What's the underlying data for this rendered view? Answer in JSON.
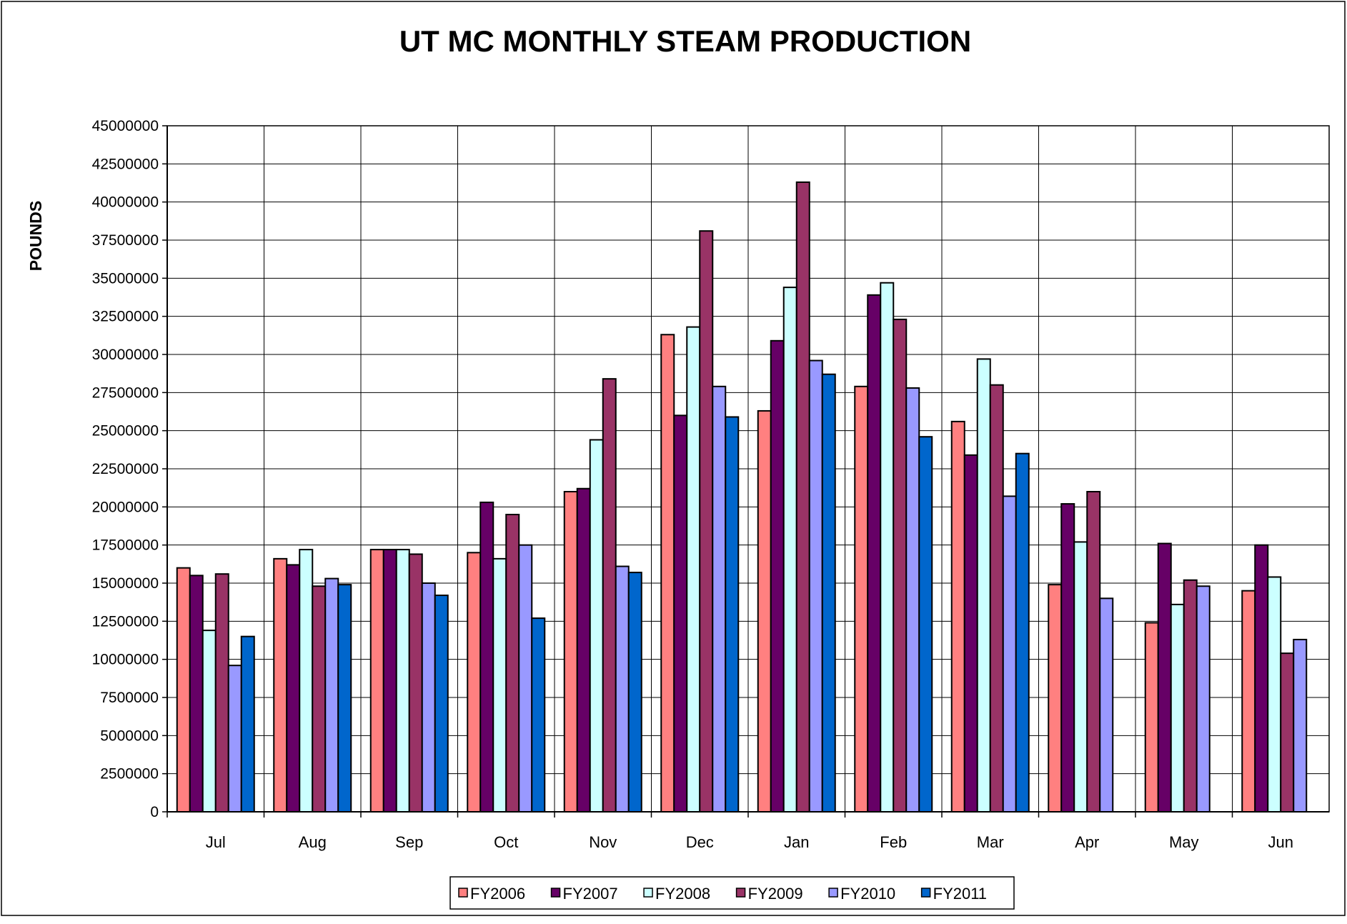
{
  "chart_data": {
    "type": "bar",
    "title": "UT MC MONTHLY STEAM PRODUCTION",
    "xlabel": "",
    "ylabel": "POUNDS",
    "ylim": [
      0,
      45000000
    ],
    "ytick_step": 2500000,
    "grid": true,
    "legend_position": "bottom",
    "categories": [
      "Jul",
      "Aug",
      "Sep",
      "Oct",
      "Nov",
      "Dec",
      "Jan",
      "Feb",
      "Mar",
      "Apr",
      "May",
      "Jun"
    ],
    "series": [
      {
        "name": "FY2006",
        "color": "#FF8080",
        "values": [
          16000000,
          16600000,
          17200000,
          17000000,
          21000000,
          31300000,
          26300000,
          27900000,
          25600000,
          14900000,
          12400000,
          14500000
        ]
      },
      {
        "name": "FY2007",
        "color": "#660066",
        "values": [
          15500000,
          16200000,
          17200000,
          20300000,
          21200000,
          26000000,
          30900000,
          33900000,
          23400000,
          20200000,
          17600000,
          17500000
        ]
      },
      {
        "name": "FY2008",
        "color": "#CCFFFF",
        "values": [
          11900000,
          17200000,
          17200000,
          16600000,
          24400000,
          31800000,
          34400000,
          34700000,
          29700000,
          17700000,
          13600000,
          15400000
        ]
      },
      {
        "name": "FY2009",
        "color": "#993366",
        "values": [
          15600000,
          14800000,
          16900000,
          19500000,
          28400000,
          38100000,
          41300000,
          32300000,
          28000000,
          21000000,
          15200000,
          10400000
        ]
      },
      {
        "name": "FY2010",
        "color": "#9999FF",
        "values": [
          9600000,
          15300000,
          15000000,
          17500000,
          16100000,
          27900000,
          29600000,
          27800000,
          20700000,
          14000000,
          14800000,
          11300000
        ]
      },
      {
        "name": "FY2011",
        "color": "#0066CC",
        "values": [
          11500000,
          14900000,
          14200000,
          12700000,
          15700000,
          25900000,
          28700000,
          24600000,
          23500000,
          null,
          null,
          null
        ]
      }
    ]
  }
}
